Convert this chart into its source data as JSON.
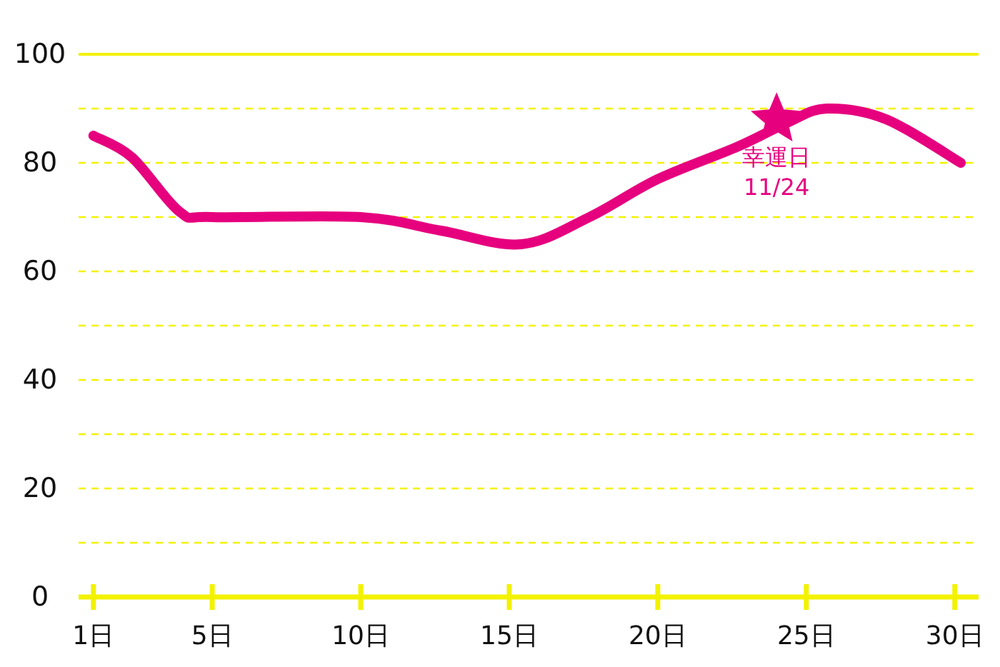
{
  "chart_data": {
    "type": "line",
    "xlim": [
      0.5,
      30.8
    ],
    "ylim": [
      0,
      100
    ],
    "xticks": [
      {
        "value": 1,
        "label": "1日"
      },
      {
        "value": 5,
        "label": "5日"
      },
      {
        "value": 10,
        "label": "10日"
      },
      {
        "value": 15,
        "label": "15日"
      },
      {
        "value": 20,
        "label": "20日"
      },
      {
        "value": 25,
        "label": "25日"
      },
      {
        "value": 30,
        "label": "30日"
      }
    ],
    "yticks": [
      0,
      {
        "value": 10,
        "label": null
      },
      20,
      {
        "value": 30,
        "label": null
      },
      40,
      {
        "value": 50,
        "label": null
      },
      60,
      {
        "value": 70,
        "label": null
      },
      80,
      {
        "value": 90,
        "label": null
      },
      100
    ],
    "grid": "y",
    "line_style": "solid",
    "marker": "none",
    "series": [
      {
        "color": "#e6007e",
        "x": [
          1,
          2.3,
          3.9,
          5,
          10,
          12.7,
          15.4,
          17.7,
          20,
          22.7,
          24.4,
          25.7,
          27.7,
          30.2
        ],
        "values": [
          85,
          81,
          71,
          70,
          70,
          67.5,
          65,
          70,
          77,
          83,
          87.5,
          90,
          88,
          80
        ]
      },
      {
        "type": "scatter",
        "marker": "star",
        "color": "#e6007e",
        "x": [
          24
        ],
        "values": [
          88
        ]
      }
    ],
    "annotations": [
      {
        "text": "幸運日\n11/24",
        "x": 24,
        "y": 88
      }
    ]
  }
}
